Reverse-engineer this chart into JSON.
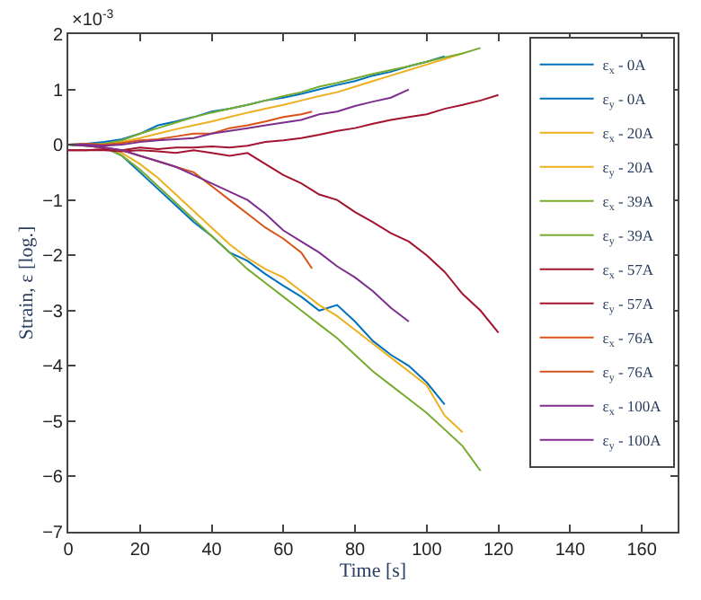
{
  "chart_data": {
    "type": "line",
    "xlabel": "Time [s]",
    "ylabel": "Strain, ε [log.]",
    "annotations": [
      "×10$^{-3}$"
    ],
    "xlim": [
      0,
      170
    ],
    "xticks": [
      0,
      20,
      40,
      60,
      80,
      100,
      120,
      140,
      160
    ],
    "ylim": [
      -7,
      2
    ],
    "yticks": [
      -7,
      -6,
      -5,
      -4,
      -3,
      -2,
      -1,
      0,
      1,
      2
    ],
    "legend": "top right",
    "line_style": "solid",
    "marker": "none",
    "series": [
      {
        "name": "ε$_{x}$ - 0A",
        "color": "#0072bd",
        "x": [
          0,
          5,
          10,
          15,
          20,
          25,
          30,
          35,
          40,
          45,
          50,
          55,
          60,
          65,
          70,
          75,
          80,
          85,
          90,
          95,
          100,
          105
        ],
        "values": [
          0,
          0.02,
          0.05,
          0.1,
          0.2,
          0.35,
          0.42,
          0.5,
          0.6,
          0.65,
          0.72,
          0.8,
          0.85,
          0.92,
          1.0,
          1.08,
          1.15,
          1.25,
          1.32,
          1.42,
          1.5,
          1.6
        ]
      },
      {
        "name": "ε$_{y}$ - 0A",
        "color": "#0072bd",
        "x": [
          0,
          5,
          10,
          15,
          20,
          25,
          30,
          35,
          40,
          45,
          50,
          55,
          60,
          65,
          70,
          75,
          80,
          85,
          90,
          95,
          100,
          105
        ],
        "values": [
          0,
          -0.02,
          -0.05,
          -0.2,
          -0.5,
          -0.8,
          -1.1,
          -1.4,
          -1.65,
          -1.95,
          -2.1,
          -2.34,
          -2.55,
          -2.75,
          -3.0,
          -2.9,
          -3.2,
          -3.55,
          -3.8,
          -4.0,
          -4.3,
          -4.7
        ]
      },
      {
        "name": "ε$_{x}$ - 20A",
        "color": "#edb120",
        "x": [
          0,
          5,
          10,
          15,
          20,
          25,
          30,
          35,
          40,
          45,
          50,
          55,
          60,
          65,
          70,
          75,
          80,
          85,
          90,
          95,
          100,
          105,
          110
        ],
        "values": [
          0,
          0,
          0,
          0.05,
          0.12,
          0.2,
          0.28,
          0.35,
          0.42,
          0.5,
          0.58,
          0.65,
          0.72,
          0.8,
          0.88,
          0.95,
          1.05,
          1.15,
          1.25,
          1.35,
          1.45,
          1.55,
          1.65
        ]
      },
      {
        "name": "ε$_{y}$ - 20A",
        "color": "#edb120",
        "x": [
          10,
          15,
          20,
          25,
          30,
          35,
          40,
          45,
          50,
          55,
          60,
          65,
          70,
          75,
          80,
          85,
          90,
          95,
          100,
          105,
          110
        ],
        "values": [
          -0.05,
          -0.15,
          -0.35,
          -0.6,
          -0.9,
          -1.2,
          -1.5,
          -1.8,
          -2.05,
          -2.25,
          -2.4,
          -2.65,
          -2.9,
          -3.1,
          -3.35,
          -3.6,
          -3.85,
          -4.1,
          -4.35,
          -4.9,
          -5.2
        ]
      },
      {
        "name": "ε$_{x}$ - 39A",
        "color": "#77ac30",
        "x": [
          0,
          5,
          10,
          15,
          20,
          25,
          30,
          35,
          40,
          45,
          50,
          55,
          60,
          65,
          70,
          75,
          80,
          85,
          90,
          95,
          100,
          105,
          110,
          115
        ],
        "values": [
          0,
          0,
          0.02,
          0.08,
          0.2,
          0.3,
          0.4,
          0.5,
          0.58,
          0.65,
          0.72,
          0.8,
          0.88,
          0.95,
          1.05,
          1.12,
          1.2,
          1.28,
          1.35,
          1.42,
          1.5,
          1.58,
          1.65,
          1.75
        ]
      },
      {
        "name": "ε$_{y}$ - 39A",
        "color": "#77ac30",
        "x": [
          0,
          5,
          10,
          15,
          20,
          25,
          30,
          35,
          40,
          45,
          50,
          55,
          60,
          65,
          70,
          75,
          80,
          85,
          90,
          95,
          100,
          105,
          110,
          115
        ],
        "values": [
          0,
          -0.02,
          -0.05,
          -0.2,
          -0.45,
          -0.75,
          -1.05,
          -1.35,
          -1.65,
          -1.95,
          -2.25,
          -2.5,
          -2.75,
          -3.0,
          -3.25,
          -3.5,
          -3.8,
          -4.1,
          -4.35,
          -4.6,
          -4.85,
          -5.15,
          -5.45,
          -5.9
        ]
      },
      {
        "name": "ε$_{x}$ - 57A",
        "color": "#a2142f",
        "x": [
          0,
          5,
          10,
          15,
          20,
          25,
          30,
          35,
          40,
          45,
          50,
          55,
          60,
          65,
          70,
          75,
          80,
          85,
          90,
          95,
          100,
          105,
          110,
          115,
          120
        ],
        "values": [
          -0.1,
          -0.1,
          -0.08,
          -0.1,
          -0.05,
          -0.08,
          -0.05,
          -0.05,
          -0.03,
          -0.05,
          -0.02,
          0.05,
          0.08,
          0.12,
          0.18,
          0.25,
          0.3,
          0.38,
          0.45,
          0.5,
          0.55,
          0.65,
          0.72,
          0.8,
          0.9
        ]
      },
      {
        "name": "ε$_{y}$ - 57A",
        "color": "#a2142f",
        "x": [
          0,
          5,
          10,
          15,
          20,
          25,
          30,
          35,
          40,
          45,
          50,
          55,
          60,
          65,
          70,
          75,
          80,
          85,
          90,
          95,
          100,
          105,
          110,
          115,
          120
        ],
        "values": [
          -0.1,
          -0.1,
          -0.1,
          -0.12,
          -0.1,
          -0.12,
          -0.15,
          -0.1,
          -0.15,
          -0.2,
          -0.15,
          -0.35,
          -0.55,
          -0.7,
          -0.9,
          -1.0,
          -1.22,
          -1.4,
          -1.6,
          -1.75,
          -2.0,
          -2.3,
          -2.7,
          -3.0,
          -3.4
        ]
      },
      {
        "name": "ε$_{x}$ - 76A",
        "color": "#d95319",
        "x": [
          0,
          5,
          10,
          15,
          20,
          25,
          30,
          35,
          40,
          45,
          50,
          55,
          60,
          65,
          68
        ],
        "values": [
          0,
          0.02,
          0,
          0.03,
          0.08,
          0.1,
          0.15,
          0.2,
          0.2,
          0.3,
          0.35,
          0.42,
          0.5,
          0.55,
          0.6
        ]
      },
      {
        "name": "ε$_{y}$ - 76A",
        "color": "#d95319",
        "x": [
          0,
          5,
          10,
          15,
          20,
          25,
          30,
          35,
          40,
          45,
          50,
          55,
          60,
          65,
          68
        ],
        "values": [
          0,
          -0.02,
          -0.05,
          -0.1,
          -0.2,
          -0.3,
          -0.4,
          -0.5,
          -0.75,
          -1.0,
          -1.25,
          -1.5,
          -1.7,
          -1.95,
          -2.24
        ]
      },
      {
        "name": "ε$_{x}$ - 100A",
        "color": "#7e2f8e",
        "x": [
          0,
          5,
          10,
          15,
          20,
          25,
          30,
          35,
          40,
          45,
          50,
          55,
          60,
          65,
          70,
          75,
          80,
          85,
          90,
          95
        ],
        "values": [
          0,
          0,
          -0.02,
          0,
          0.05,
          0.08,
          0.1,
          0.12,
          0.2,
          0.25,
          0.3,
          0.35,
          0.4,
          0.45,
          0.55,
          0.6,
          0.7,
          0.78,
          0.85,
          1.0
        ]
      },
      {
        "name": "ε$_{y}$ - 100A",
        "color": "#7e2f8e",
        "x": [
          0,
          5,
          10,
          15,
          20,
          25,
          30,
          35,
          40,
          45,
          50,
          55,
          60,
          65,
          70,
          75,
          80,
          85,
          90,
          95
        ],
        "values": [
          0,
          -0.02,
          -0.05,
          -0.1,
          -0.2,
          -0.3,
          -0.4,
          -0.55,
          -0.7,
          -0.85,
          -1.0,
          -1.25,
          -1.55,
          -1.75,
          -1.95,
          -2.2,
          -2.4,
          -2.65,
          -2.95,
          -3.2
        ]
      }
    ]
  }
}
